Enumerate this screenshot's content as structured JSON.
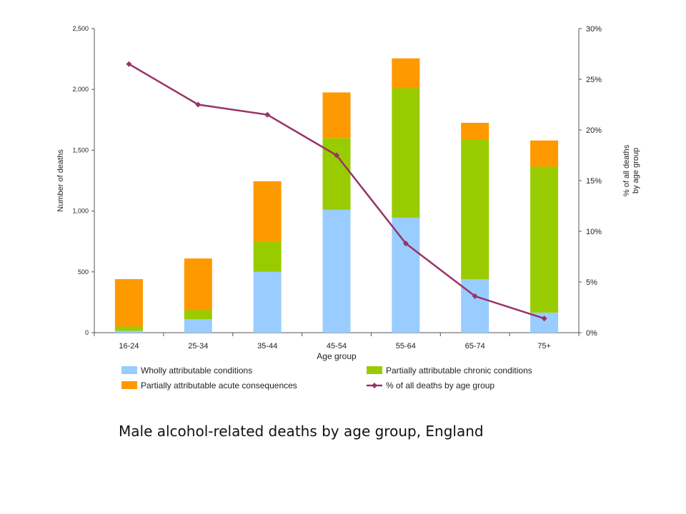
{
  "caption": "Male alcohol-related deaths by age group, England",
  "chart_data": {
    "type": "bar",
    "stacked": true,
    "categories": [
      "16-24",
      "25-34",
      "35-44",
      "45-54",
      "55-64",
      "65-74",
      "75+"
    ],
    "xlabel": "Age group",
    "ylabel": "Number of deaths",
    "y2label_lines": [
      "% of all deaths",
      "by age group"
    ],
    "ylim": [
      0,
      2500
    ],
    "yticks": [
      0,
      500,
      1000,
      1500,
      2000,
      2500
    ],
    "ytick_labels": [
      "0",
      "500",
      "1,000",
      "1,500",
      "2,000",
      "2,500"
    ],
    "y2lim": [
      0,
      30
    ],
    "y2ticks": [
      0,
      5,
      10,
      15,
      20,
      25,
      30
    ],
    "y2tick_labels": [
      "0%",
      "5%",
      "10%",
      "15%",
      "20%",
      "25%",
      "30%"
    ],
    "grid": false,
    "legend_position": "bottom",
    "series": [
      {
        "name": "Wholly attributable conditions",
        "type": "bar",
        "color": "#99ccff",
        "values": [
          15,
          110,
          500,
          1010,
          945,
          440,
          165
        ]
      },
      {
        "name": "Partially attributable chronic conditions",
        "type": "bar",
        "color": "#99cc00",
        "values": [
          35,
          75,
          245,
          590,
          1065,
          1150,
          1200
        ]
      },
      {
        "name": "Partially attributable acute consequences",
        "type": "bar",
        "color": "#ff9900",
        "values": [
          390,
          425,
          500,
          375,
          245,
          135,
          215
        ]
      },
      {
        "name": "% of all deaths by age group",
        "type": "line",
        "axis": "right",
        "color": "#993366",
        "values": [
          26.5,
          22.5,
          21.5,
          17.5,
          8.8,
          3.6,
          1.4
        ]
      }
    ],
    "legend_order": [
      0,
      1,
      2,
      3
    ]
  }
}
